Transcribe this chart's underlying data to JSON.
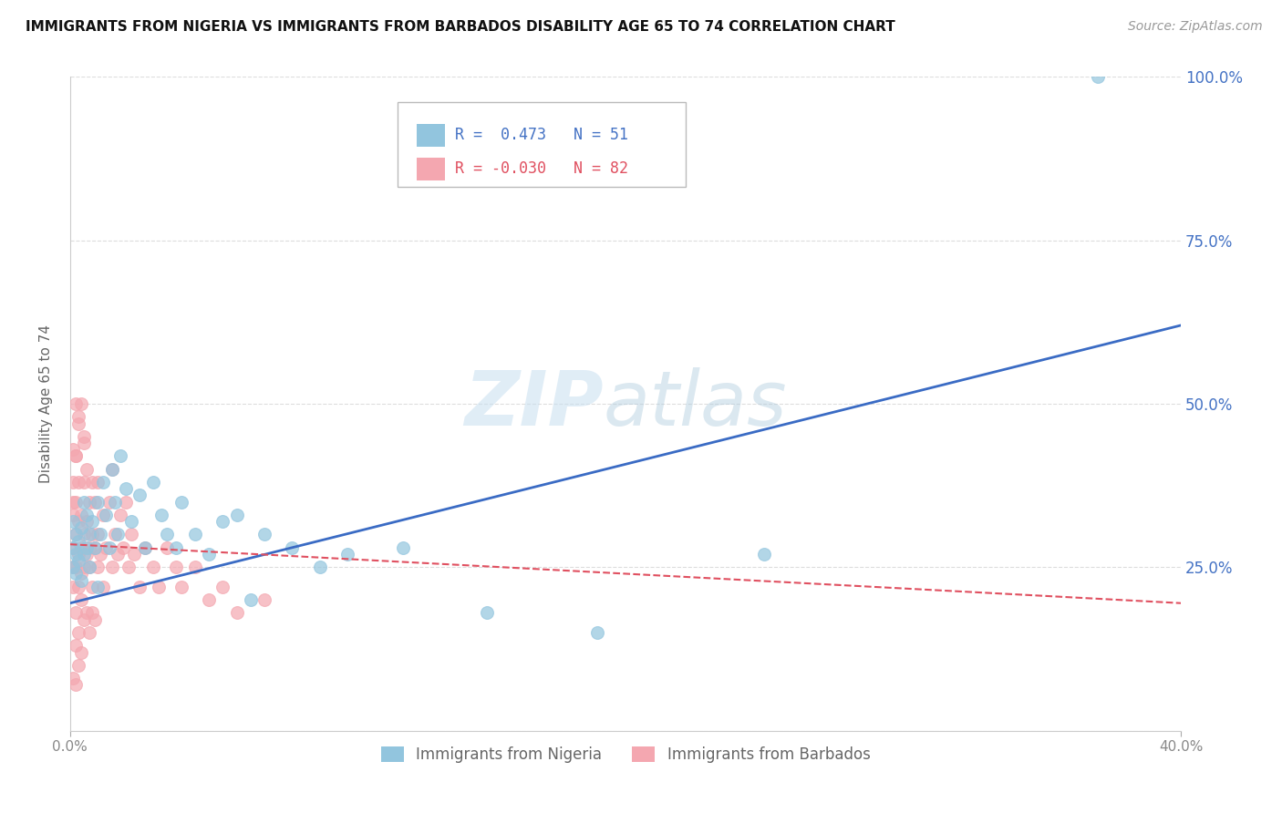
{
  "title": "IMMIGRANTS FROM NIGERIA VS IMMIGRANTS FROM BARBADOS DISABILITY AGE 65 TO 74 CORRELATION CHART",
  "source": "Source: ZipAtlas.com",
  "ylabel": "Disability Age 65 to 74",
  "x_min": 0.0,
  "x_max": 0.4,
  "y_min": 0.0,
  "y_max": 1.0,
  "x_ticks": [
    0.0,
    0.4
  ],
  "x_tick_labels": [
    "0.0%",
    "40.0%"
  ],
  "y_ticks": [
    0.0,
    0.25,
    0.5,
    0.75,
    1.0
  ],
  "y_tick_labels": [
    "",
    "25.0%",
    "50.0%",
    "75.0%",
    "100.0%"
  ],
  "nigeria_color": "#92C5DE",
  "barbados_color": "#F4A7B0",
  "nigeria_line_color": "#3A6BC4",
  "barbados_line_color": "#E05060",
  "nigeria_R": 0.473,
  "nigeria_N": 51,
  "barbados_R": -0.03,
  "barbados_N": 82,
  "watermark_zip": "ZIP",
  "watermark_atlas": "atlas",
  "legend_label_nigeria": "Immigrants from Nigeria",
  "legend_label_barbados": "Immigrants from Barbados",
  "nigeria_scatter_x": [
    0.001,
    0.001,
    0.001,
    0.002,
    0.002,
    0.002,
    0.003,
    0.003,
    0.004,
    0.004,
    0.005,
    0.005,
    0.006,
    0.006,
    0.007,
    0.007,
    0.008,
    0.009,
    0.01,
    0.01,
    0.011,
    0.012,
    0.013,
    0.014,
    0.015,
    0.016,
    0.017,
    0.018,
    0.02,
    0.022,
    0.025,
    0.027,
    0.03,
    0.033,
    0.035,
    0.038,
    0.04,
    0.045,
    0.05,
    0.055,
    0.06,
    0.065,
    0.07,
    0.08,
    0.09,
    0.1,
    0.12,
    0.15,
    0.19,
    0.25,
    0.37
  ],
  "nigeria_scatter_y": [
    0.28,
    0.32,
    0.25,
    0.3,
    0.27,
    0.24,
    0.29,
    0.26,
    0.31,
    0.23,
    0.27,
    0.35,
    0.28,
    0.33,
    0.3,
    0.25,
    0.32,
    0.28,
    0.35,
    0.22,
    0.3,
    0.38,
    0.33,
    0.28,
    0.4,
    0.35,
    0.3,
    0.42,
    0.37,
    0.32,
    0.36,
    0.28,
    0.38,
    0.33,
    0.3,
    0.28,
    0.35,
    0.3,
    0.27,
    0.32,
    0.33,
    0.2,
    0.3,
    0.28,
    0.25,
    0.27,
    0.28,
    0.18,
    0.15,
    0.27,
    1.0
  ],
  "barbados_scatter_x": [
    0.001,
    0.001,
    0.001,
    0.001,
    0.002,
    0.002,
    0.002,
    0.002,
    0.003,
    0.003,
    0.003,
    0.003,
    0.004,
    0.004,
    0.004,
    0.005,
    0.005,
    0.005,
    0.005,
    0.006,
    0.006,
    0.006,
    0.007,
    0.007,
    0.007,
    0.008,
    0.008,
    0.008,
    0.009,
    0.009,
    0.01,
    0.01,
    0.01,
    0.011,
    0.012,
    0.012,
    0.013,
    0.014,
    0.015,
    0.015,
    0.016,
    0.017,
    0.018,
    0.019,
    0.02,
    0.021,
    0.022,
    0.023,
    0.025,
    0.027,
    0.03,
    0.032,
    0.035,
    0.038,
    0.04,
    0.045,
    0.05,
    0.055,
    0.06,
    0.07,
    0.001,
    0.002,
    0.003,
    0.004,
    0.005,
    0.006,
    0.007,
    0.008,
    0.009,
    0.001,
    0.002,
    0.003,
    0.001,
    0.002,
    0.003,
    0.004,
    0.005,
    0.002,
    0.003,
    0.004,
    0.001,
    0.002
  ],
  "barbados_scatter_y": [
    0.28,
    0.33,
    0.25,
    0.38,
    0.3,
    0.25,
    0.35,
    0.42,
    0.27,
    0.32,
    0.22,
    0.38,
    0.28,
    0.33,
    0.24,
    0.3,
    0.38,
    0.25,
    0.45,
    0.27,
    0.32,
    0.4,
    0.28,
    0.35,
    0.25,
    0.3,
    0.38,
    0.22,
    0.28,
    0.35,
    0.3,
    0.25,
    0.38,
    0.27,
    0.33,
    0.22,
    0.28,
    0.35,
    0.25,
    0.4,
    0.3,
    0.27,
    0.33,
    0.28,
    0.35,
    0.25,
    0.3,
    0.27,
    0.22,
    0.28,
    0.25,
    0.22,
    0.28,
    0.25,
    0.22,
    0.25,
    0.2,
    0.22,
    0.18,
    0.2,
    0.22,
    0.18,
    0.15,
    0.2,
    0.17,
    0.18,
    0.15,
    0.18,
    0.17,
    0.35,
    0.5,
    0.48,
    0.43,
    0.42,
    0.47,
    0.5,
    0.44,
    0.13,
    0.1,
    0.12,
    0.08,
    0.07
  ],
  "nigeria_trendline_x": [
    0.0,
    0.4
  ],
  "nigeria_trendline_y": [
    0.195,
    0.62
  ],
  "barbados_trendline_x": [
    0.0,
    0.4
  ],
  "barbados_trendline_y": [
    0.285,
    0.195
  ]
}
